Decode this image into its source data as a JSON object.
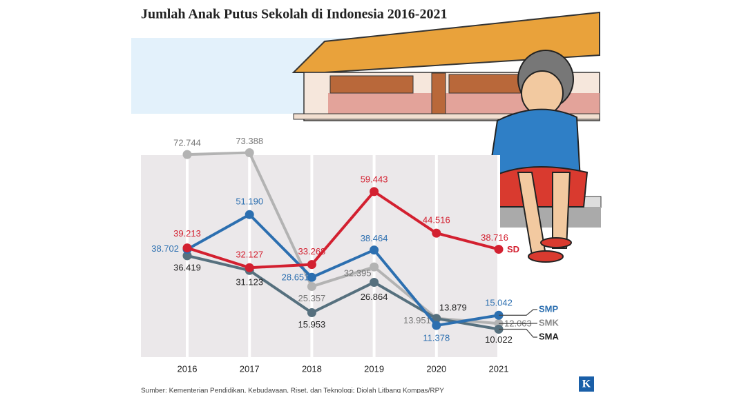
{
  "chart_data": {
    "type": "line",
    "title": "Jumlah Anak Putus Sekolah di Indonesia 2016-2021",
    "source": "Sumber: Kementerian Pendidikan, Kebudayaan, Riset, dan Teknologi; Diolah Litbang Kompas/RPY",
    "logo": "K",
    "categories": [
      "2016",
      "2017",
      "2018",
      "2019",
      "2020",
      "2021"
    ],
    "series": [
      {
        "name": "SMK",
        "color": "#b3b3b3",
        "values": [
          72744,
          73388,
          25357,
          32395,
          13951,
          12063
        ],
        "value_labels": [
          "72.744",
          "73.388",
          "25.357",
          "32.395",
          "13.951",
          "12.063"
        ]
      },
      {
        "name": "SMA",
        "color": "#56707e",
        "values": [
          36419,
          31123,
          15953,
          26864,
          13879,
          10022
        ],
        "value_labels": [
          "36.419",
          "31.123",
          "15.953",
          "26.864",
          "13.879",
          "10.022"
        ]
      },
      {
        "name": "SMP",
        "color": "#2c6fb0",
        "values": [
          38702,
          51190,
          28651,
          38464,
          11378,
          15042
        ],
        "value_labels": [
          "38.702",
          "51.190",
          "28.651",
          "38.464",
          "11.378",
          "15.042"
        ]
      },
      {
        "name": "SD",
        "color": "#d32030",
        "values": [
          39213,
          32127,
          33268,
          59443,
          44516,
          38716
        ],
        "value_labels": [
          "39.213",
          "32.127",
          "33.268",
          "59.443",
          "44.516",
          "38.716"
        ]
      }
    ]
  }
}
